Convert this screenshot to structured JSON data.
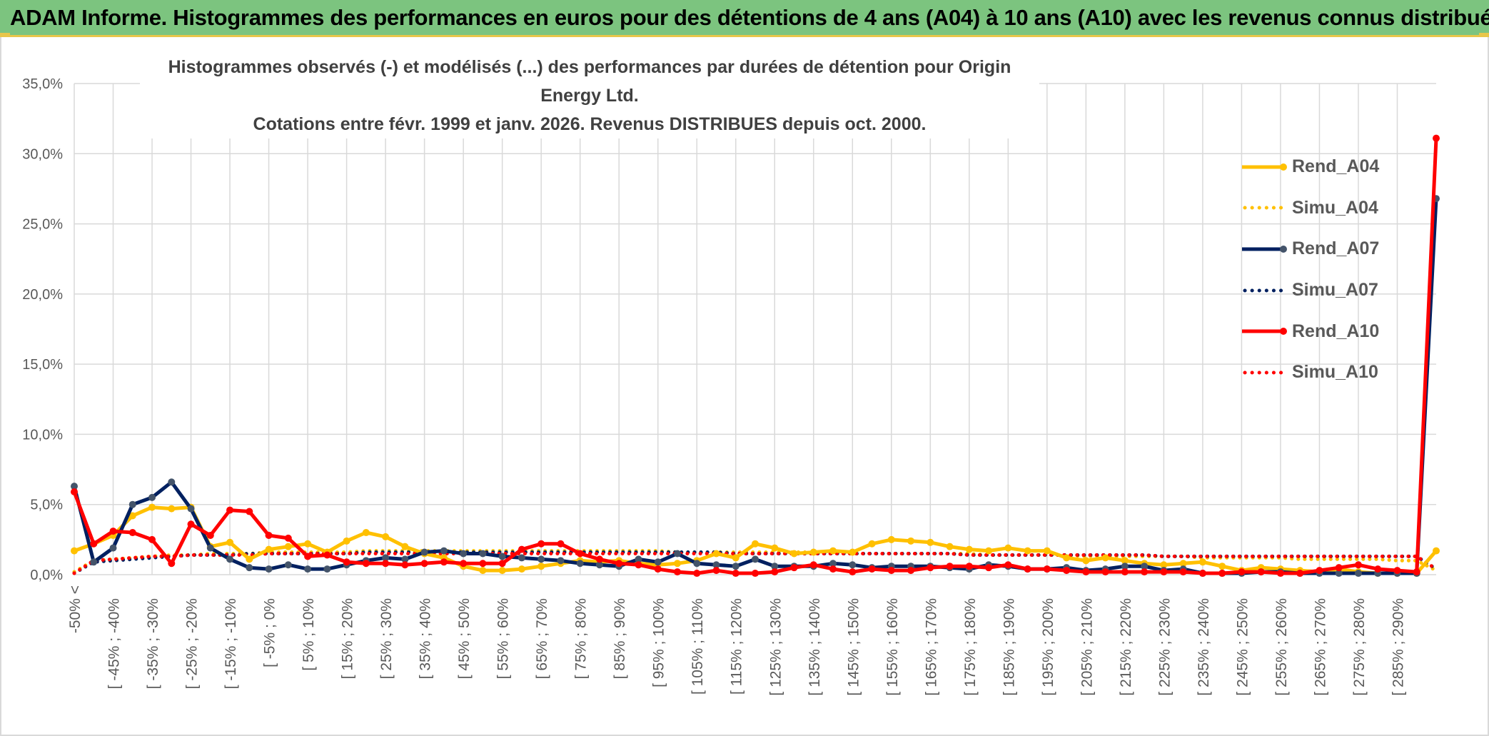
{
  "banner": {
    "title": "ADAM Informe. Histogrammes des performances en euros pour des détentions de 4 ans (A04) à 10 ans (A10) avec les revenus connus distribués"
  },
  "colors": {
    "banner_bg": "#7cc47f",
    "accent_gold": "#e8c64a",
    "grid": "#d9d9d9",
    "axis_text": "#595959"
  },
  "chart_data": {
    "type": "line",
    "title_line1": "Histogrammes observés (-) et modélisés (...) des performances par durées de détention pour Origin Energy Ltd.",
    "title_line2": "Cotations entre févr. 1999 et janv. 2026. Revenus DISTRIBUES depuis oct. 2000.",
    "xlabel": "",
    "ylabel": "",
    "ylim": [
      0,
      35
    ],
    "y_ticks": [
      "0,0%",
      "5,0%",
      "10,0%",
      "15,0%",
      "20,0%",
      "25,0%",
      "30,0%",
      "35,0%"
    ],
    "grid": true,
    "legend_position": "right",
    "x_tick_labels": [
      "-50% <",
      "[ -45% ; -40%",
      "[ -35% ; -30%",
      "[ -25% ; -20%",
      "[ -15% ; -10%",
      "[ -5% ; 0%",
      "[ 5% ; 10%",
      "[ 15% ; 20%",
      "[ 25% ; 30%",
      "[ 35% ; 40%",
      "[ 45% ; 50%",
      "[ 55% ; 60%",
      "[ 65% ; 70%",
      "[ 75% ; 80%",
      "[ 85% ; 90%",
      "[ 95% ; 100%",
      "[ 105% ; 110%",
      "[ 115% ; 120%",
      "[ 125% ; 130%",
      "[ 135% ; 140%",
      "[ 145% ; 150%",
      "[ 155% ; 160%",
      "[ 165% ; 170%",
      "[ 175% ; 180%",
      "[ 185% ; 190%",
      "[ 195% ; 200%",
      "[ 205% ; 210%",
      "[ 215% ; 220%",
      "[ 225% ; 230%",
      "[ 235% ; 240%",
      "[ 245% ; 250%",
      "[ 255% ; 260%",
      "[ 265% ; 270%",
      "[ 275% ; 280%",
      "[ 285% ; 290%"
    ],
    "series": [
      {
        "name": "Rend_A04",
        "style": "solid",
        "color": "#ffc000",
        "values": [
          1.7,
          2.2,
          2.8,
          4.2,
          4.8,
          4.7,
          4.8,
          2.0,
          2.3,
          1.1,
          1.8,
          2.0,
          2.2,
          1.6,
          2.4,
          3.0,
          2.7,
          2.0,
          1.5,
          1.2,
          0.6,
          0.3,
          0.3,
          0.4,
          0.6,
          0.8,
          1.0,
          0.9,
          1.0,
          0.8,
          0.7,
          0.8,
          1.0,
          1.5,
          1.2,
          2.2,
          1.9,
          1.5,
          1.6,
          1.7,
          1.6,
          2.2,
          2.5,
          2.4,
          2.3,
          2.0,
          1.8,
          1.7,
          1.9,
          1.7,
          1.7,
          1.2,
          1.0,
          1.2,
          1.0,
          0.8,
          0.7,
          0.8,
          0.9,
          0.6,
          0.3,
          0.5,
          0.4,
          0.3,
          0.2,
          0.4,
          0.2,
          0.1,
          0.1,
          0.1,
          1.7
        ]
      },
      {
        "name": "Simu_A04",
        "style": "dotted",
        "color": "#ffc000",
        "values": [
          0.2,
          1.0,
          1.1,
          1.2,
          1.3,
          1.4,
          1.4,
          1.5,
          1.5,
          1.5,
          1.6,
          1.6,
          1.6,
          1.6,
          1.6,
          1.7,
          1.7,
          1.7,
          1.7,
          1.7,
          1.7,
          1.7,
          1.7,
          1.7,
          1.7,
          1.7,
          1.7,
          1.7,
          1.7,
          1.7,
          1.7,
          1.6,
          1.6,
          1.6,
          1.6,
          1.6,
          1.6,
          1.6,
          1.6,
          1.6,
          1.5,
          1.5,
          1.5,
          1.5,
          1.5,
          1.5,
          1.5,
          1.4,
          1.4,
          1.4,
          1.4,
          1.4,
          1.3,
          1.3,
          1.3,
          1.3,
          1.3,
          1.3,
          1.2,
          1.2,
          1.2,
          1.2,
          1.2,
          1.1,
          1.1,
          1.1,
          1.1,
          1.1,
          1.0,
          1.0,
          0.3
        ]
      },
      {
        "name": "Rend_A07",
        "style": "solid",
        "color": "#002060",
        "values": [
          6.3,
          0.9,
          1.9,
          5.0,
          5.5,
          6.6,
          4.7,
          1.9,
          1.1,
          0.5,
          0.4,
          0.7,
          0.4,
          0.4,
          0.7,
          1.0,
          1.2,
          1.1,
          1.6,
          1.7,
          1.5,
          1.5,
          1.3,
          1.2,
          1.1,
          1.0,
          0.8,
          0.7,
          0.6,
          1.1,
          0.9,
          1.5,
          0.8,
          0.7,
          0.6,
          1.1,
          0.6,
          0.6,
          0.6,
          0.8,
          0.7,
          0.5,
          0.6,
          0.6,
          0.6,
          0.5,
          0.4,
          0.7,
          0.6,
          0.4,
          0.4,
          0.5,
          0.3,
          0.4,
          0.6,
          0.6,
          0.3,
          0.4,
          0.1,
          0.1,
          0.1,
          0.2,
          0.2,
          0.1,
          0.1,
          0.1,
          0.1,
          0.1,
          0.1,
          0.1,
          26.8
        ]
      },
      {
        "name": "Simu_A07",
        "style": "dotted",
        "color": "#002060",
        "values": [
          0.1,
          0.9,
          1.0,
          1.1,
          1.2,
          1.3,
          1.4,
          1.4,
          1.4,
          1.5,
          1.5,
          1.5,
          1.5,
          1.5,
          1.5,
          1.6,
          1.6,
          1.6,
          1.6,
          1.6,
          1.6,
          1.6,
          1.6,
          1.6,
          1.6,
          1.6,
          1.6,
          1.6,
          1.6,
          1.6,
          1.6,
          1.6,
          1.6,
          1.6,
          1.5,
          1.5,
          1.5,
          1.5,
          1.5,
          1.5,
          1.5,
          1.5,
          1.5,
          1.5,
          1.5,
          1.5,
          1.4,
          1.4,
          1.4,
          1.4,
          1.4,
          1.4,
          1.4,
          1.4,
          1.4,
          1.4,
          1.3,
          1.3,
          1.3,
          1.3,
          1.3,
          1.3,
          1.3,
          1.3,
          1.3,
          1.3,
          1.3,
          1.3,
          1.3,
          1.3,
          0.4
        ]
      },
      {
        "name": "Rend_A10",
        "style": "solid",
        "color": "#ff0000",
        "values": [
          5.9,
          2.2,
          3.1,
          3.0,
          2.5,
          0.8,
          3.6,
          2.8,
          4.6,
          4.5,
          2.8,
          2.6,
          1.3,
          1.4,
          0.9,
          0.8,
          0.8,
          0.7,
          0.8,
          0.9,
          0.8,
          0.8,
          0.8,
          1.8,
          2.2,
          2.2,
          1.5,
          1.1,
          0.8,
          0.7,
          0.4,
          0.2,
          0.1,
          0.3,
          0.1,
          0.1,
          0.2,
          0.5,
          0.7,
          0.4,
          0.2,
          0.4,
          0.3,
          0.3,
          0.5,
          0.6,
          0.6,
          0.5,
          0.7,
          0.4,
          0.4,
          0.3,
          0.2,
          0.2,
          0.2,
          0.2,
          0.2,
          0.2,
          0.1,
          0.1,
          0.2,
          0.2,
          0.1,
          0.1,
          0.3,
          0.5,
          0.7,
          0.4,
          0.3,
          0.2,
          31.1
        ]
      },
      {
        "name": "Simu_A10",
        "style": "dotted",
        "color": "#ff0000",
        "values": [
          0.1,
          1.0,
          1.1,
          1.2,
          1.3,
          1.3,
          1.4,
          1.4,
          1.4,
          1.4,
          1.5,
          1.5,
          1.5,
          1.5,
          1.5,
          1.5,
          1.5,
          1.5,
          1.5,
          1.5,
          1.5,
          1.5,
          1.5,
          1.5,
          1.5,
          1.5,
          1.5,
          1.5,
          1.5,
          1.5,
          1.5,
          1.5,
          1.5,
          1.5,
          1.5,
          1.5,
          1.5,
          1.5,
          1.5,
          1.5,
          1.5,
          1.5,
          1.5,
          1.5,
          1.5,
          1.5,
          1.4,
          1.4,
          1.4,
          1.4,
          1.4,
          1.4,
          1.4,
          1.4,
          1.4,
          1.4,
          1.3,
          1.3,
          1.3,
          1.3,
          1.3,
          1.3,
          1.3,
          1.3,
          1.3,
          1.3,
          1.3,
          1.3,
          1.3,
          1.3,
          0.4
        ]
      }
    ]
  }
}
